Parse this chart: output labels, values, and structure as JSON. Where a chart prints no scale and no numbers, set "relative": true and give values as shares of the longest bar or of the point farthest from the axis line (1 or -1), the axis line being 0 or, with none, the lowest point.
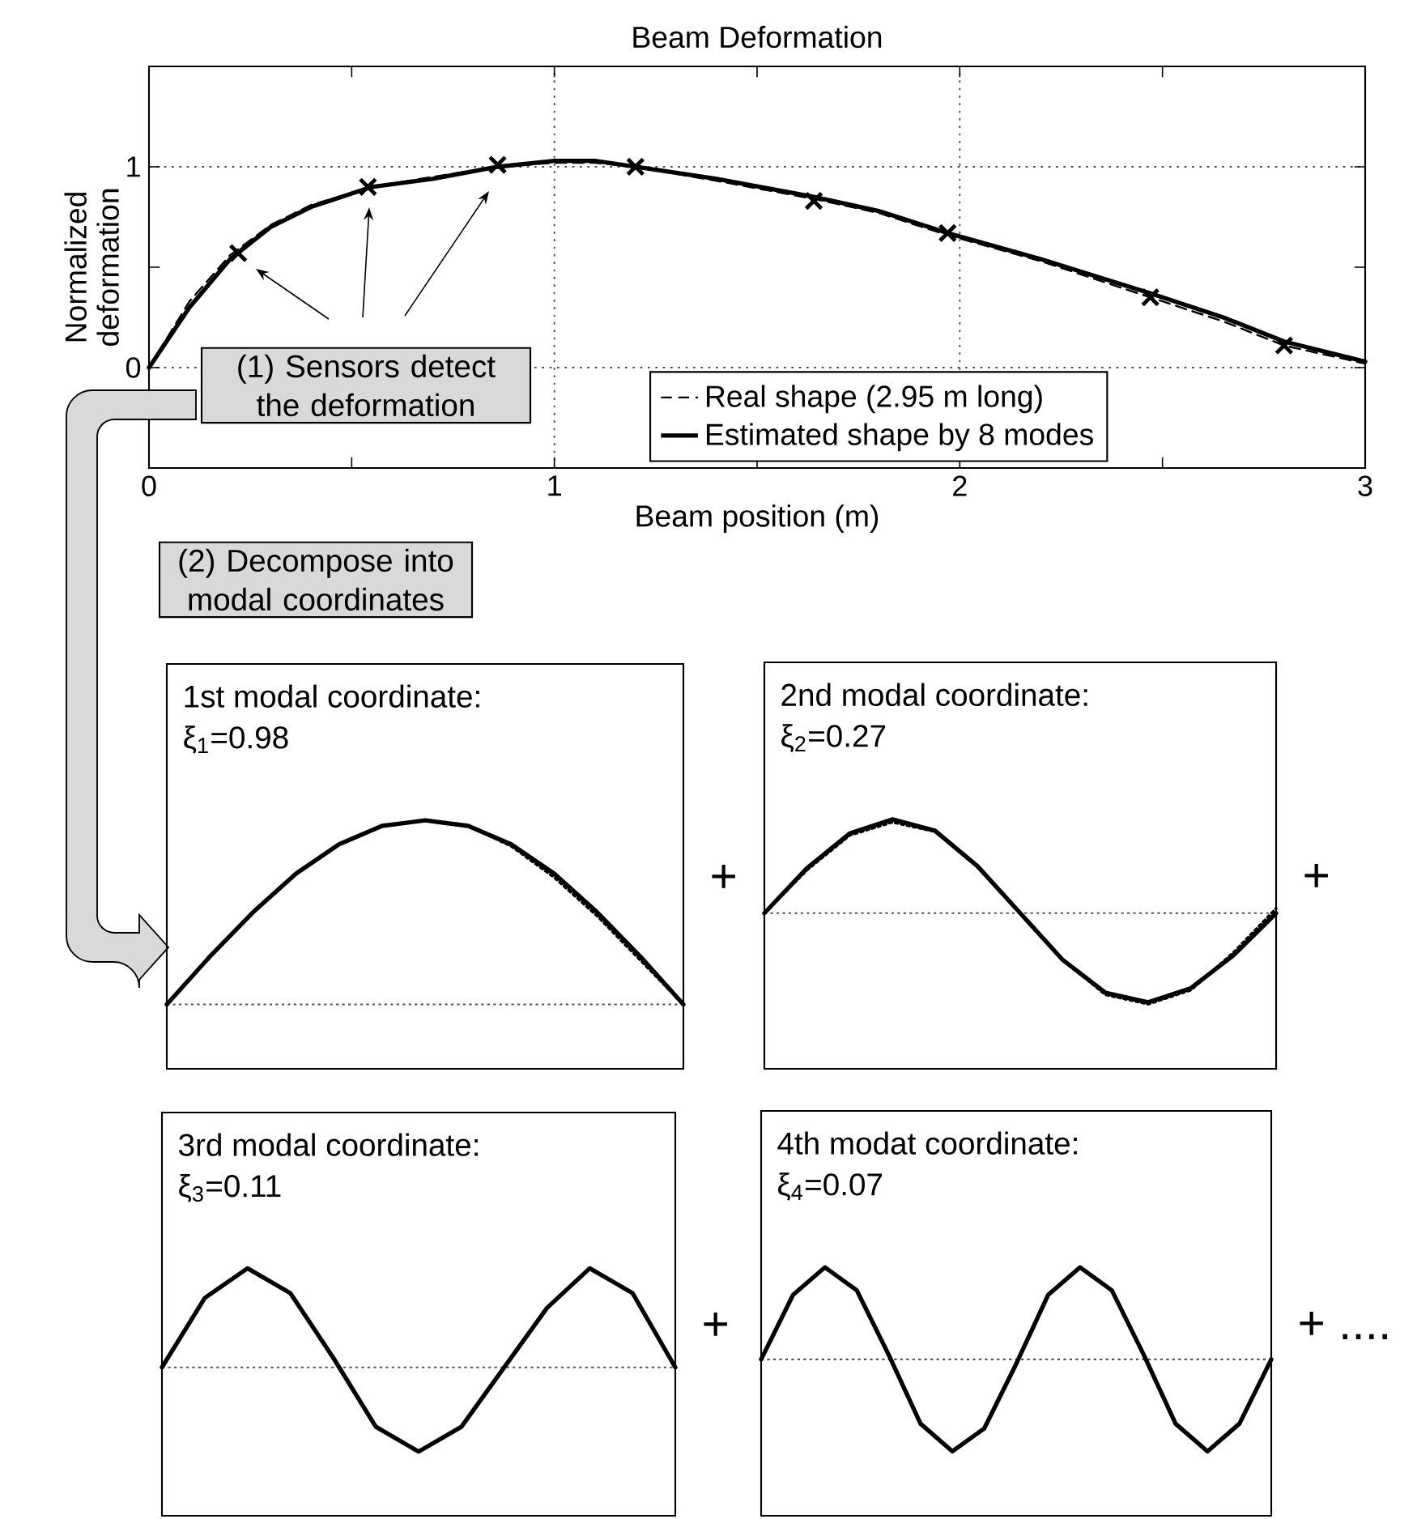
{
  "chart_data": [
    {
      "type": "line",
      "title": "Beam Deformation",
      "xlabel": "Beam position (m)",
      "ylabel": "Normalized deformation",
      "xlim": [
        0,
        3
      ],
      "ylim": [
        -0.5,
        1.5
      ],
      "xticks": [
        0,
        {
          "value": 0.5,
          "label": null
        },
        1,
        {
          "value": 1.5,
          "label": null
        },
        2,
        {
          "value": 2.5,
          "label": null
        },
        3
      ],
      "yticks": [
        0,
        {
          "value": 0.5,
          "label": null
        },
        1
      ],
      "grid": true,
      "legend": "bottom",
      "series": [
        {
          "name": "Real shape (2.95 m long)",
          "color": "#000000",
          "line_style": "dashed",
          "x": [
            0,
            0.1,
            0.2,
            0.3,
            0.4,
            0.55,
            0.7,
            0.86,
            1.0,
            1.1,
            1.2,
            1.4,
            1.64,
            1.8,
            1.97,
            2.2,
            2.47,
            2.65,
            2.8,
            3.0
          ],
          "values": [
            0,
            0.33,
            0.56,
            0.71,
            0.81,
            0.9,
            0.95,
            1.0,
            1.02,
            1.02,
            1.0,
            0.93,
            0.84,
            0.77,
            0.66,
            0.53,
            0.35,
            0.23,
            0.11,
            0.02
          ]
        },
        {
          "name": "Estimated shape by 8 modes",
          "color": "#000000",
          "line_style": "solid",
          "x": [
            0,
            0.1,
            0.2,
            0.3,
            0.4,
            0.55,
            0.7,
            0.86,
            1.0,
            1.1,
            1.2,
            1.4,
            1.64,
            1.8,
            1.97,
            2.2,
            2.47,
            2.65,
            2.8,
            3.0
          ],
          "values": [
            0,
            0.3,
            0.54,
            0.7,
            0.8,
            0.9,
            0.94,
            1.0,
            1.03,
            1.03,
            1.0,
            0.94,
            0.85,
            0.78,
            0.67,
            0.54,
            0.37,
            0.25,
            0.13,
            0.03
          ]
        },
        {
          "type": "scatter",
          "marker": "cross",
          "color": "#000000",
          "x": [
            0.22,
            0.54,
            0.86,
            1.2,
            1.64,
            1.97,
            2.47,
            2.8
          ],
          "values": [
            0.57,
            0.9,
            1.01,
            1.0,
            0.83,
            0.67,
            0.35,
            0.11
          ]
        }
      ],
      "annotations": [
        "(1) Sensors detect the deformation",
        "(2) Decompose into modal coordinates"
      ]
    },
    {
      "type": "line",
      "relative": true,
      "title": "1st modal coordinate:",
      "subtitle": "ξ$_{1}$=0.98",
      "categories": [
        null,
        null,
        null,
        null,
        null,
        null,
        null,
        null,
        null,
        null,
        null,
        null,
        null
      ],
      "ref_lines": [
        {
          "axis": "y",
          "value": 0,
          "color": "#555555",
          "line_style": "dotted"
        }
      ],
      "series": [
        {
          "color": "#000000",
          "line_style": "dotted",
          "values": [
            0,
            0.26,
            0.5,
            0.71,
            0.87,
            0.97,
            1.0,
            0.97,
            0.86,
            0.69,
            0.48,
            0.24,
            0
          ]
        },
        {
          "color": "#000000",
          "line_style": "solid",
          "values": [
            0,
            0.26,
            0.5,
            0.71,
            0.87,
            0.97,
            1.0,
            0.97,
            0.87,
            0.71,
            0.5,
            0.26,
            0
          ]
        }
      ],
      "annotations": [
        "+"
      ]
    },
    {
      "type": "line",
      "relative": true,
      "title": "2nd modal coordinate:",
      "subtitle": "ξ$_{2}$=0.27",
      "categories": [
        null,
        null,
        null,
        null,
        null,
        null,
        null,
        null,
        null,
        null,
        null,
        null,
        null
      ],
      "ref_lines": [
        {
          "axis": "y",
          "value": 0,
          "color": "#555555",
          "line_style": "dotted"
        }
      ],
      "series": [
        {
          "color": "#000000",
          "line_style": "dotted",
          "values": [
            0,
            0.46,
            0.83,
            0.97,
            0.87,
            0.5,
            0.0,
            -0.5,
            -0.87,
            -0.97,
            -0.82,
            -0.42,
            0.05
          ]
        },
        {
          "color": "#000000",
          "line_style": "solid",
          "values": [
            0,
            0.48,
            0.85,
            1.0,
            0.88,
            0.5,
            0.0,
            -0.5,
            -0.85,
            -0.95,
            -0.8,
            -0.45,
            0.0
          ]
        }
      ],
      "annotations": [
        "+"
      ]
    },
    {
      "type": "line",
      "relative": true,
      "title": "3rd modal coordinate:",
      "subtitle": "ξ$_{3}$=0.11",
      "categories": [
        null,
        null,
        null,
        null,
        null,
        null,
        null,
        null,
        null,
        null,
        null,
        null,
        null
      ],
      "ref_lines": [
        {
          "axis": "y",
          "value": 0,
          "color": "#555555",
          "line_style": "dotted"
        }
      ],
      "series": [
        {
          "color": "#000000",
          "line_style": "solid",
          "values": [
            0,
            0.7,
            1.0,
            0.75,
            0.1,
            -0.6,
            -0.85,
            -0.6,
            0.0,
            0.6,
            1.0,
            0.75,
            0
          ]
        }
      ],
      "annotations": [
        "+"
      ]
    },
    {
      "type": "line",
      "relative": true,
      "title": "4th modat coordinate:",
      "subtitle": "ξ$_{4}$=0.07",
      "categories": [
        null,
        null,
        null,
        null,
        null,
        null,
        null,
        null,
        null,
        null,
        null,
        null,
        null,
        null,
        null,
        null,
        null
      ],
      "ref_lines": [
        {
          "axis": "y",
          "value": 0,
          "color": "#555555",
          "line_style": "dotted"
        }
      ],
      "series": [
        {
          "color": "#000000",
          "line_style": "solid",
          "values": [
            0,
            0.7,
            1.0,
            0.75,
            0.05,
            -0.7,
            -1.0,
            -0.75,
            -0.05,
            0.7,
            1.0,
            0.75,
            0.05,
            -0.7,
            -1.0,
            -0.7,
            0
          ]
        }
      ],
      "annotations": [
        "+ ...."
      ]
    }
  ]
}
